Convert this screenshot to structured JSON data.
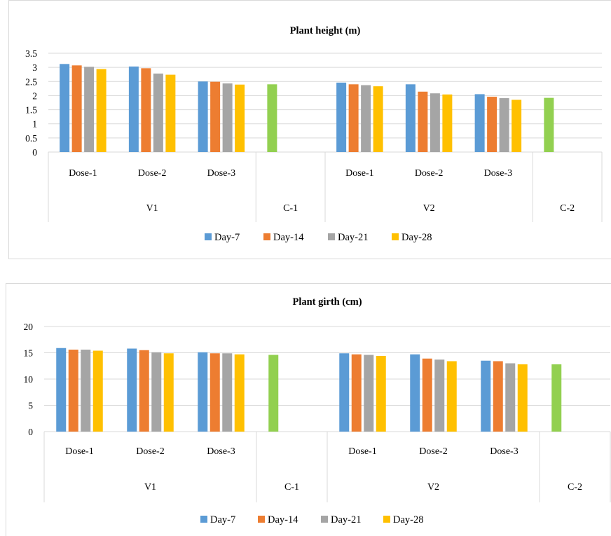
{
  "chart_data": [
    {
      "type": "bar",
      "title": "Plant height (m)",
      "xlabel": "",
      "ylabel": "",
      "ylim": [
        0,
        3.5
      ],
      "yticks": [
        "0",
        "0.5",
        "1",
        "1.5",
        "2",
        "2.5",
        "3",
        "3.5"
      ],
      "grid": true,
      "legend_position": "bottom",
      "groups": [
        {
          "label": "V1",
          "categories": [
            "Dose-1",
            "Dose-2",
            "Dose-3"
          ]
        },
        {
          "label": "C-1",
          "categories": [
            ""
          ]
        },
        {
          "label": "V2",
          "categories": [
            "Dose-1",
            "Dose-2",
            "Dose-3"
          ]
        },
        {
          "label": "C-2",
          "categories": [
            ""
          ]
        }
      ],
      "series": [
        {
          "name": "Day-7",
          "color": "#5b9bd5",
          "values": [
            3.12,
            3.03,
            2.5,
            null,
            2.46,
            2.4,
            2.05,
            null
          ]
        },
        {
          "name": "Day-14",
          "color": "#ed7d31",
          "values": [
            3.07,
            2.97,
            2.49,
            null,
            2.4,
            2.14,
            1.96,
            null
          ]
        },
        {
          "name": "Day-21",
          "color": "#a5a5a5",
          "values": [
            3.02,
            2.78,
            2.43,
            null,
            2.37,
            2.08,
            1.91,
            null
          ]
        },
        {
          "name": "Day-28",
          "color": "#ffc000",
          "values": [
            2.94,
            2.74,
            2.39,
            null,
            2.33,
            2.04,
            1.85,
            null
          ]
        }
      ],
      "control": {
        "color": "#92d050",
        "values": [
          null,
          null,
          null,
          2.4,
          null,
          null,
          null,
          1.92
        ]
      }
    },
    {
      "type": "bar",
      "title": "Plant girth (cm)",
      "xlabel": "",
      "ylabel": "",
      "ylim": [
        0,
        20
      ],
      "yticks": [
        "0",
        "5",
        "10",
        "15",
        "20"
      ],
      "grid": true,
      "legend_position": "bottom",
      "groups": [
        {
          "label": "V1",
          "categories": [
            "Dose-1",
            "Dose-2",
            "Dose-3"
          ]
        },
        {
          "label": "C-1",
          "categories": [
            ""
          ]
        },
        {
          "label": "V2",
          "categories": [
            "Dose-1",
            "Dose-2",
            "Dose-3"
          ]
        },
        {
          "label": "C-2",
          "categories": [
            ""
          ]
        }
      ],
      "series": [
        {
          "name": "Day-7",
          "color": "#5b9bd5",
          "values": [
            15.9,
            15.8,
            15.1,
            null,
            14.9,
            14.7,
            13.5,
            null
          ]
        },
        {
          "name": "Day-14",
          "color": "#ed7d31",
          "values": [
            15.6,
            15.5,
            14.9,
            null,
            14.7,
            13.9,
            13.4,
            null
          ]
        },
        {
          "name": "Day-21",
          "color": "#a5a5a5",
          "values": [
            15.6,
            15.1,
            14.9,
            null,
            14.6,
            13.7,
            13.0,
            null
          ]
        },
        {
          "name": "Day-28",
          "color": "#ffc000",
          "values": [
            15.4,
            14.9,
            14.7,
            null,
            14.4,
            13.4,
            12.8,
            null
          ]
        }
      ],
      "control": {
        "color": "#92d050",
        "values": [
          null,
          null,
          null,
          14.6,
          null,
          null,
          null,
          12.8
        ]
      }
    }
  ]
}
